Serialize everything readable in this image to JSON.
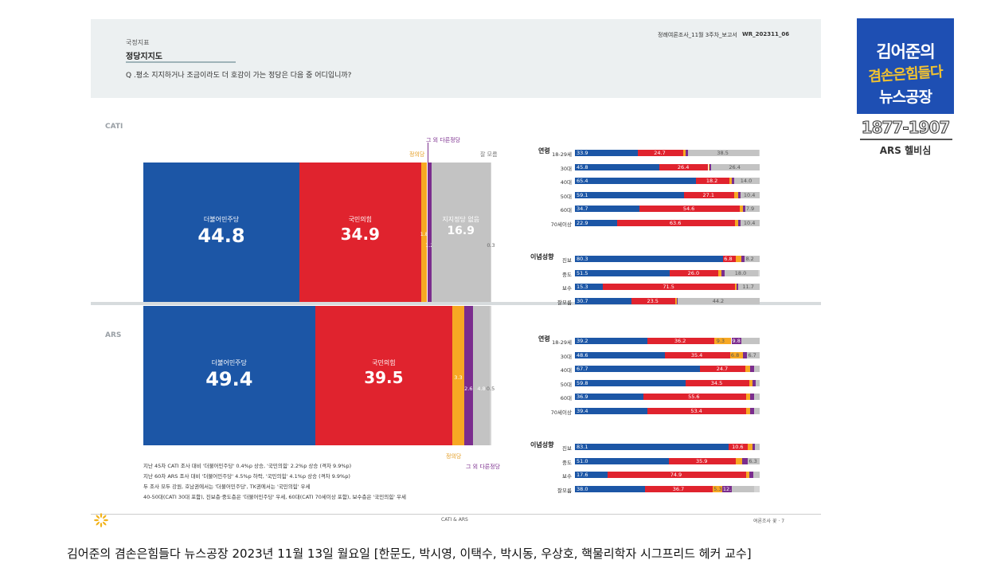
{
  "header": {
    "category": "국정지표",
    "title": "정당지지도",
    "question": "Q .평소 지지하거나 조금이라도 더 호감이 가는 정당은 다음 중 어디입니까?",
    "report_ref": "정례여론조사_11월 3주차_보고서",
    "code": "WR_202311_06"
  },
  "sections": {
    "cati_label": "CATI",
    "ars_label": "ARS"
  },
  "callouts": {
    "cati_other": "그 외 다른정당",
    "cati_justice": "정의당",
    "cati_dontknow": "잘 모름",
    "ars_justice": "정의당",
    "ars_other": "그 외 다른정당"
  },
  "colors": {
    "dem": "#1c56a6",
    "ppp": "#e0232e",
    "justice": "#f7a823",
    "other": "#7b2d8e",
    "none": "#c3c3c3",
    "dontknow": "#d4d4d4",
    "header_bg": "#ecf0f1",
    "logo_bg": "#1e4fb3"
  },
  "chart_data": [
    {
      "type": "bar",
      "stacked": true,
      "orientation": "horizontal-100%",
      "name": "CATI",
      "categories": [
        "더불어민주당",
        "국민의힘",
        "정의당",
        "그 외 다른정당",
        "지지정당 없음",
        "잘 모름"
      ],
      "values": [
        44.8,
        34.9,
        1.8,
        1.2,
        16.9,
        0.3
      ]
    },
    {
      "type": "bar",
      "stacked": true,
      "orientation": "horizontal-100%",
      "name": "ARS",
      "categories": [
        "더불어민주당",
        "국민의힘",
        "정의당",
        "그 외 다른정당",
        "지지정당 없음",
        "잘 모름"
      ],
      "values": [
        49.4,
        39.5,
        3.3,
        2.6,
        4.8,
        0.5
      ]
    },
    {
      "type": "bar",
      "stacked": true,
      "name": "CATI breakdown",
      "groups": [
        {
          "label": "연령",
          "rows": [
            {
              "label": "18-29세",
              "dem": 33.9,
              "ppp": 24.7,
              "justice": 1.5,
              "other": 1.0,
              "none": 38.5,
              "dk": 0.4
            },
            {
              "label": "30대",
              "dem": 45.8,
              "ppp": 26.4,
              "justice": 0.8,
              "other": 0.6,
              "none": 26.4,
              "dk": 0
            },
            {
              "label": "40대",
              "dem": 65.4,
              "ppp": 18.2,
              "justice": 1.2,
              "other": 1.2,
              "none": 14.0,
              "dk": 0
            },
            {
              "label": "50대",
              "dem": 59.1,
              "ppp": 27.1,
              "justice": 2.0,
              "other": 1.4,
              "none": 10.4,
              "dk": 0
            },
            {
              "label": "60대",
              "dem": 34.7,
              "ppp": 54.6,
              "justice": 1.5,
              "other": 1.3,
              "none": 7.9,
              "dk": 0
            },
            {
              "label": "70세이상",
              "dem": 22.9,
              "ppp": 63.6,
              "justice": 1.8,
              "other": 1.3,
              "none": 10.4,
              "dk": 0
            }
          ]
        },
        {
          "label": "이념성향",
          "rows": [
            {
              "label": "진보",
              "dem": 80.3,
              "ppp": 6.8,
              "justice": 3.0,
              "other": 1.7,
              "none": 8.2,
              "dk": 0
            },
            {
              "label": "중도",
              "dem": 51.5,
              "ppp": 26.0,
              "justice": 2.0,
              "other": 1.5,
              "none": 18.0,
              "dk": 1.0
            },
            {
              "label": "보수",
              "dem": 15.3,
              "ppp": 71.5,
              "justice": 0.8,
              "other": 0.7,
              "none": 11.7,
              "dk": 0
            },
            {
              "label": "잘모름",
              "dem": 30.7,
              "ppp": 23.5,
              "justice": 1.0,
              "other": 0.6,
              "none": 44.2,
              "dk": 0
            }
          ]
        }
      ],
      "labels": {
        "연령": [
          [
            "33.9",
            "24.7",
            "38.5"
          ],
          [
            "45.8",
            "26.4",
            "26.4"
          ],
          [
            "65.4",
            "18.2",
            "14.0"
          ],
          [
            "59.1",
            "27.1",
            "10.4"
          ],
          [
            "34.7",
            "54.6",
            "7.9"
          ],
          [
            "22.9",
            "63.6",
            "10.4"
          ]
        ],
        "이념성향": [
          [
            "80.3",
            "6.8",
            "8.2"
          ],
          [
            "51.5",
            "26.0",
            "18.0"
          ],
          [
            "15.3",
            "71.5",
            "11.7"
          ],
          [
            "30.7",
            "23.5",
            "44.2"
          ]
        ]
      }
    },
    {
      "type": "bar",
      "stacked": true,
      "name": "ARS breakdown",
      "groups": [
        {
          "label": "연령",
          "rows": [
            {
              "label": "18-29세",
              "dem": 39.2,
              "ppp": 36.2,
              "justice": 9.3,
              "other": 5.5,
              "none": 9.8,
              "dk": 0
            },
            {
              "label": "30대",
              "dem": 48.6,
              "ppp": 35.4,
              "justice": 6.8,
              "other": 2.5,
              "none": 6.7,
              "dk": 0
            },
            {
              "label": "40대",
              "dem": 67.7,
              "ppp": 24.7,
              "justice": 2.5,
              "other": 2.0,
              "none": 3.1,
              "dk": 0
            },
            {
              "label": "50대",
              "dem": 59.8,
              "ppp": 34.5,
              "justice": 2.0,
              "other": 1.5,
              "none": 2.2,
              "dk": 0
            },
            {
              "label": "60대",
              "dem": 36.9,
              "ppp": 55.6,
              "justice": 2.5,
              "other": 2.0,
              "none": 3.0,
              "dk": 0
            },
            {
              "label": "70세이상",
              "dem": 39.4,
              "ppp": 53.4,
              "justice": 2.0,
              "other": 2.0,
              "none": 3.2,
              "dk": 0
            }
          ]
        },
        {
          "label": "이념성향",
          "rows": [
            {
              "label": "진보",
              "dem": 83.1,
              "ppp": 10.6,
              "justice": 2.5,
              "other": 1.3,
              "none": 2.5,
              "dk": 0
            },
            {
              "label": "중도",
              "dem": 51.0,
              "ppp": 35.9,
              "justice": 3.5,
              "other": 3.3,
              "none": 6.3,
              "dk": 0
            },
            {
              "label": "보수",
              "dem": 17.6,
              "ppp": 74.9,
              "justice": 2.0,
              "other": 2.0,
              "none": 3.5,
              "dk": 0
            },
            {
              "label": "잘모름",
              "dem": 38.0,
              "ppp": 36.7,
              "justice": 5.0,
              "other": 5.3,
              "none": 12.1,
              "dk": 2.9
            }
          ]
        }
      ],
      "labels": {
        "연령": [
          [
            "39.2",
            "36.2",
            "9.3",
            "9.8"
          ],
          [
            "48.6",
            "35.4",
            "6.8",
            "6.7"
          ],
          [
            "67.7",
            "24.7"
          ],
          [
            "59.8",
            "34.5"
          ],
          [
            "36.9",
            "55.6"
          ],
          [
            "39.4",
            "53.4"
          ]
        ],
        "이념성향": [
          [
            "83.1",
            "10.6"
          ],
          [
            "51.0",
            "35.9",
            "6.3"
          ],
          [
            "17.6",
            "74.9"
          ],
          [
            "38.0",
            "36.7",
            "5.3",
            "12.1"
          ]
        ]
      }
    }
  ],
  "notes": [
    "지난 45차 CATI 조사 대비 '더불어민주당' 0.4%p 상승, '국민의힘' 2.2%p 상승 (격차 9.9%p)",
    "지난 60차 ARS 조사 대비 '더불어민주당' 4.5%p 하락, '국민의힘' 4.1%p 상승 (격차 9.9%p)",
    "두 조사 모두 강원, 호남권에서는 '더불어민주당', TK권에서는 '국민의힘' 우세",
    "40-50대(CATI 30대 포함), 진보층·중도층은 '더불어민주당' 우세, 60대(CATI 70세이상 포함), 보수층은 '국민의힘' 우세"
  ],
  "footer": {
    "center": "CATI & ARS",
    "right": "여론조사 꽃 · 7"
  },
  "logo": {
    "line1": "김어준의",
    "line2": "겸손은힘들다",
    "line3": "뉴스공장",
    "phone": "1877-1907",
    "ars": "ARS 헬비심"
  },
  "caption": "김어준의 겸손은힘들다 뉴스공장 2023년 11월 13일 월요일 [한문도, 박시영, 이택수, 박시동, 우상호, 핵물리학자 시그프리드 헤커 교수]"
}
